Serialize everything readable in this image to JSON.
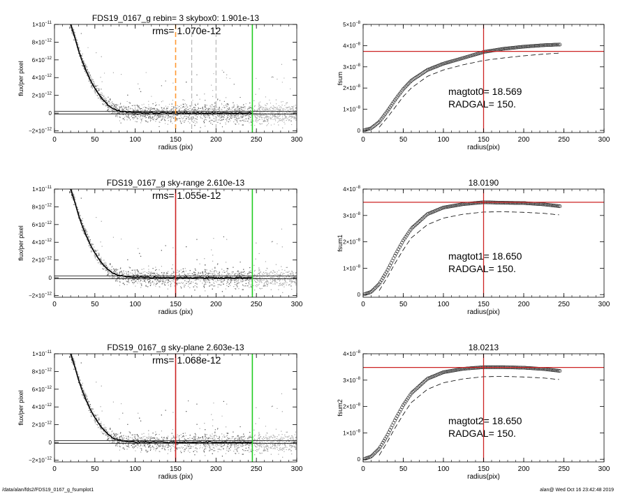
{
  "footer": {
    "left": "/data/alan/fds2/FDS19_0167_g_fsumplot1",
    "right": "alan@  Wed Oct 16 23:42:48 2019"
  },
  "colors": {
    "scatter_light": "#a8a8a8",
    "scatter_dark": "#555555",
    "profile": "#000000",
    "red_line": "#cc2222",
    "green_line": "#22cc22",
    "orange_dash": "#ff9933",
    "gray_dash": "#aaaaaa",
    "marker": "#303030"
  },
  "chart_data": [
    {
      "type": "scatter",
      "title": "FDS19_0167_g rebin= 3    skybox0:  1.901e-13",
      "annotation": "rms= 1.070e-12",
      "xlabel": "radius (pix)",
      "ylabel": "flux/per pixel",
      "xlim": [
        0,
        300
      ],
      "ylim": [
        -2.2e-12,
        1e-11
      ],
      "xticks": [
        0,
        50,
        100,
        150,
        200,
        250,
        300
      ],
      "yticks": [
        -2e-12,
        0,
        2e-12,
        4e-12,
        6e-12,
        8e-12,
        1e-11
      ],
      "ytick_labels": [
        {
          "mantissa": "−2×10",
          "exp": "−12"
        },
        {
          "mantissa": "0",
          "exp": ""
        },
        {
          "mantissa": "2×10",
          "exp": "−12"
        },
        {
          "mantissa": "4×10",
          "exp": "−12"
        },
        {
          "mantissa": "6×10",
          "exp": "−12"
        },
        {
          "mantissa": "8×10",
          "exp": "−12"
        },
        {
          "mantissa": "1×10",
          "exp": "−11"
        }
      ],
      "profile": {
        "x": [
          20,
          25,
          30,
          35,
          40,
          45,
          50,
          55,
          60,
          65,
          70,
          75,
          80,
          90,
          100,
          120,
          150,
          200,
          245
        ],
        "y": [
          1e-11,
          8.6e-12,
          7e-12,
          5.7e-12,
          4.6e-12,
          3.6e-12,
          2.8e-12,
          2.1e-12,
          1.5e-12,
          1e-12,
          6.5e-13,
          4e-13,
          2.5e-13,
          1.2e-13,
          7e-14,
          4e-14,
          2e-14,
          5e-15,
          0
        ]
      },
      "sky_band": [
        -1e-13,
        2e-13
      ],
      "vlines": [
        {
          "x": 150,
          "style": "orange-dash"
        },
        {
          "x": 170,
          "style": "gray-dash"
        },
        {
          "x": 200,
          "style": "gray-dash"
        },
        {
          "x": 245,
          "style": "green"
        }
      ],
      "grid": false
    },
    {
      "type": "line",
      "title": "",
      "xlabel": "radius(pix)",
      "ylabel": "fsum",
      "xlim": [
        0,
        300
      ],
      "ylim": [
        -1e-09,
        5e-08
      ],
      "xticks": [
        0,
        50,
        100,
        150,
        200,
        250,
        300
      ],
      "yticks": [
        0,
        1e-08,
        2e-08,
        3e-08,
        4e-08,
        5e-08
      ],
      "ytick_labels": [
        {
          "mantissa": "0",
          "exp": ""
        },
        {
          "mantissa": "1×10",
          "exp": "−8"
        },
        {
          "mantissa": "2×10",
          "exp": "−8"
        },
        {
          "mantissa": "3×10",
          "exp": "−8"
        },
        {
          "mantissa": "4×10",
          "exp": "−8"
        },
        {
          "mantissa": "5×10",
          "exp": "−8"
        }
      ],
      "series": [
        {
          "x": [
            0,
            10,
            20,
            30,
            40,
            50,
            60,
            80,
            100,
            125,
            150,
            175,
            200,
            225,
            245
          ],
          "y": [
            0,
            1e-09,
            4e-09,
            9e-09,
            1.45e-08,
            1.95e-08,
            2.35e-08,
            2.85e-08,
            3.15e-08,
            3.42e-08,
            3.7e-08,
            3.85e-08,
            3.95e-08,
            4.02e-08,
            4.05e-08
          ]
        },
        {
          "x": [
            20,
            30,
            40,
            50,
            60,
            80,
            100,
            125,
            150,
            175,
            200,
            225,
            245
          ],
          "y": [
            1.5e-09,
            6e-09,
            1.1e-08,
            1.6e-08,
            2e-08,
            2.55e-08,
            2.85e-08,
            3.1e-08,
            3.3e-08,
            3.42e-08,
            3.52e-08,
            3.6e-08,
            3.65e-08
          ]
        }
      ],
      "hline": 3.73e-08,
      "vline": 150,
      "annotations": [
        "magtot0=  18.569",
        "RADGAL=    150."
      ],
      "grid": false
    },
    {
      "type": "scatter",
      "title": "FDS19_0167_g  sky-range  2.610e-13",
      "annotation": "rms= 1.055e-12",
      "xlabel": "radius (pix)",
      "ylabel": "flux/per pixel",
      "xlim": [
        0,
        300
      ],
      "ylim": [
        -2.2e-12,
        1e-11
      ],
      "xticks": [
        0,
        50,
        100,
        150,
        200,
        250,
        300
      ],
      "yticks": [
        -2e-12,
        0,
        2e-12,
        4e-12,
        6e-12,
        8e-12,
        1e-11
      ],
      "ytick_labels": [
        {
          "mantissa": "−2×10",
          "exp": "−12"
        },
        {
          "mantissa": "0",
          "exp": ""
        },
        {
          "mantissa": "2×10",
          "exp": "−12"
        },
        {
          "mantissa": "4×10",
          "exp": "−12"
        },
        {
          "mantissa": "6×10",
          "exp": "−12"
        },
        {
          "mantissa": "8×10",
          "exp": "−12"
        },
        {
          "mantissa": "1×10",
          "exp": "−11"
        }
      ],
      "profile": {
        "x": [
          20,
          25,
          30,
          35,
          40,
          45,
          50,
          55,
          60,
          65,
          70,
          75,
          80,
          90,
          100,
          120,
          150,
          200,
          245
        ],
        "y": [
          1e-11,
          8.6e-12,
          7e-12,
          5.7e-12,
          4.6e-12,
          3.6e-12,
          2.8e-12,
          2.1e-12,
          1.5e-12,
          1e-12,
          6.5e-13,
          4e-13,
          2.5e-13,
          1.2e-13,
          7e-14,
          4e-14,
          2e-14,
          5e-15,
          0
        ]
      },
      "sky_band": [
        -1e-13,
        2e-13
      ],
      "vlines": [
        {
          "x": 150,
          "style": "red"
        },
        {
          "x": 245,
          "style": "green"
        }
      ],
      "grid": false
    },
    {
      "type": "line",
      "title": "18.0190",
      "xlabel": "radius(pix)",
      "ylabel": "fsum1",
      "xlim": [
        0,
        300
      ],
      "ylim": [
        -1e-09,
        4e-08
      ],
      "xticks": [
        0,
        50,
        100,
        150,
        200,
        250,
        300
      ],
      "yticks": [
        0,
        1e-08,
        2e-08,
        3e-08,
        4e-08
      ],
      "ytick_labels": [
        {
          "mantissa": "0",
          "exp": ""
        },
        {
          "mantissa": "1×10",
          "exp": "−8"
        },
        {
          "mantissa": "2×10",
          "exp": "−8"
        },
        {
          "mantissa": "3×10",
          "exp": "−8"
        },
        {
          "mantissa": "4×10",
          "exp": "−8"
        }
      ],
      "series": [
        {
          "x": [
            0,
            10,
            20,
            30,
            40,
            50,
            60,
            80,
            100,
            125,
            150,
            175,
            200,
            225,
            245
          ],
          "y": [
            0,
            1e-09,
            4e-09,
            9e-09,
            1.5e-08,
            2.05e-08,
            2.5e-08,
            3.05e-08,
            3.3e-08,
            3.43e-08,
            3.5e-08,
            3.48e-08,
            3.47e-08,
            3.42e-08,
            3.35e-08
          ]
        },
        {
          "x": [
            20,
            30,
            40,
            50,
            60,
            80,
            100,
            125,
            150,
            175,
            200,
            225,
            245
          ],
          "y": [
            1.5e-09,
            6.5e-09,
            1.2e-08,
            1.7e-08,
            2.15e-08,
            2.65e-08,
            2.9e-08,
            3.05e-08,
            3.13e-08,
            3.14e-08,
            3.12e-08,
            3.08e-08,
            3.02e-08
          ]
        }
      ],
      "hline": 3.5e-08,
      "vline": 150,
      "annotations": [
        "magtot1=  18.650",
        "RADGAL=    150."
      ],
      "grid": false
    },
    {
      "type": "scatter",
      "title": "FDS19_0167_g  sky-plane  2.603e-13",
      "annotation": "rms= 1.068e-12",
      "xlabel": "radius (pix)",
      "ylabel": "flux/per pixel",
      "xlim": [
        0,
        300
      ],
      "ylim": [
        -2.2e-12,
        1e-11
      ],
      "xticks": [
        0,
        50,
        100,
        150,
        200,
        250,
        300
      ],
      "yticks": [
        -2e-12,
        0,
        2e-12,
        4e-12,
        6e-12,
        8e-12,
        1e-11
      ],
      "ytick_labels": [
        {
          "mantissa": "−2×10",
          "exp": "−12"
        },
        {
          "mantissa": "0",
          "exp": ""
        },
        {
          "mantissa": "2×10",
          "exp": "−12"
        },
        {
          "mantissa": "4×10",
          "exp": "−12"
        },
        {
          "mantissa": "6×10",
          "exp": "−12"
        },
        {
          "mantissa": "8×10",
          "exp": "−12"
        },
        {
          "mantissa": "1×10",
          "exp": "−11"
        }
      ],
      "profile": {
        "x": [
          20,
          25,
          30,
          35,
          40,
          45,
          50,
          55,
          60,
          65,
          70,
          75,
          80,
          90,
          100,
          120,
          150,
          200,
          245
        ],
        "y": [
          1e-11,
          8.6e-12,
          7e-12,
          5.7e-12,
          4.6e-12,
          3.6e-12,
          2.8e-12,
          2.1e-12,
          1.5e-12,
          1e-12,
          6.5e-13,
          4e-13,
          2.5e-13,
          1.2e-13,
          7e-14,
          4e-14,
          2e-14,
          5e-15,
          0
        ]
      },
      "sky_band": [
        -1e-13,
        2e-13
      ],
      "vlines": [
        {
          "x": 150,
          "style": "red"
        },
        {
          "x": 245,
          "style": "green"
        }
      ],
      "grid": false
    },
    {
      "type": "line",
      "title": "18.0213",
      "xlabel": "radius(pix)",
      "ylabel": "fsum2",
      "xlim": [
        0,
        300
      ],
      "ylim": [
        -1e-09,
        4e-08
      ],
      "xticks": [
        0,
        50,
        100,
        150,
        200,
        250,
        300
      ],
      "yticks": [
        0,
        1e-08,
        2e-08,
        3e-08,
        4e-08
      ],
      "ytick_labels": [
        {
          "mantissa": "0",
          "exp": ""
        },
        {
          "mantissa": "1×10",
          "exp": "−8"
        },
        {
          "mantissa": "2×10",
          "exp": "−8"
        },
        {
          "mantissa": "3×10",
          "exp": "−8"
        },
        {
          "mantissa": "4×10",
          "exp": "−8"
        }
      ],
      "series": [
        {
          "x": [
            0,
            10,
            20,
            30,
            40,
            50,
            60,
            80,
            100,
            125,
            150,
            175,
            200,
            225,
            245
          ],
          "y": [
            0,
            1e-09,
            4e-09,
            9e-09,
            1.5e-08,
            2.05e-08,
            2.5e-08,
            3.05e-08,
            3.3e-08,
            3.43e-08,
            3.49e-08,
            3.49e-08,
            3.47e-08,
            3.42e-08,
            3.35e-08
          ]
        },
        {
          "x": [
            20,
            30,
            40,
            50,
            60,
            80,
            100,
            125,
            150,
            175,
            200,
            225,
            245
          ],
          "y": [
            1.5e-09,
            6.5e-09,
            1.2e-08,
            1.7e-08,
            2.15e-08,
            2.65e-08,
            2.9e-08,
            3.05e-08,
            3.13e-08,
            3.14e-08,
            3.12e-08,
            3.08e-08,
            3.02e-08
          ]
        }
      ],
      "hline": 3.48e-08,
      "vline": 150,
      "annotations": [
        "magtot2=  18.650",
        "RADGAL=    150."
      ],
      "grid": false
    }
  ]
}
